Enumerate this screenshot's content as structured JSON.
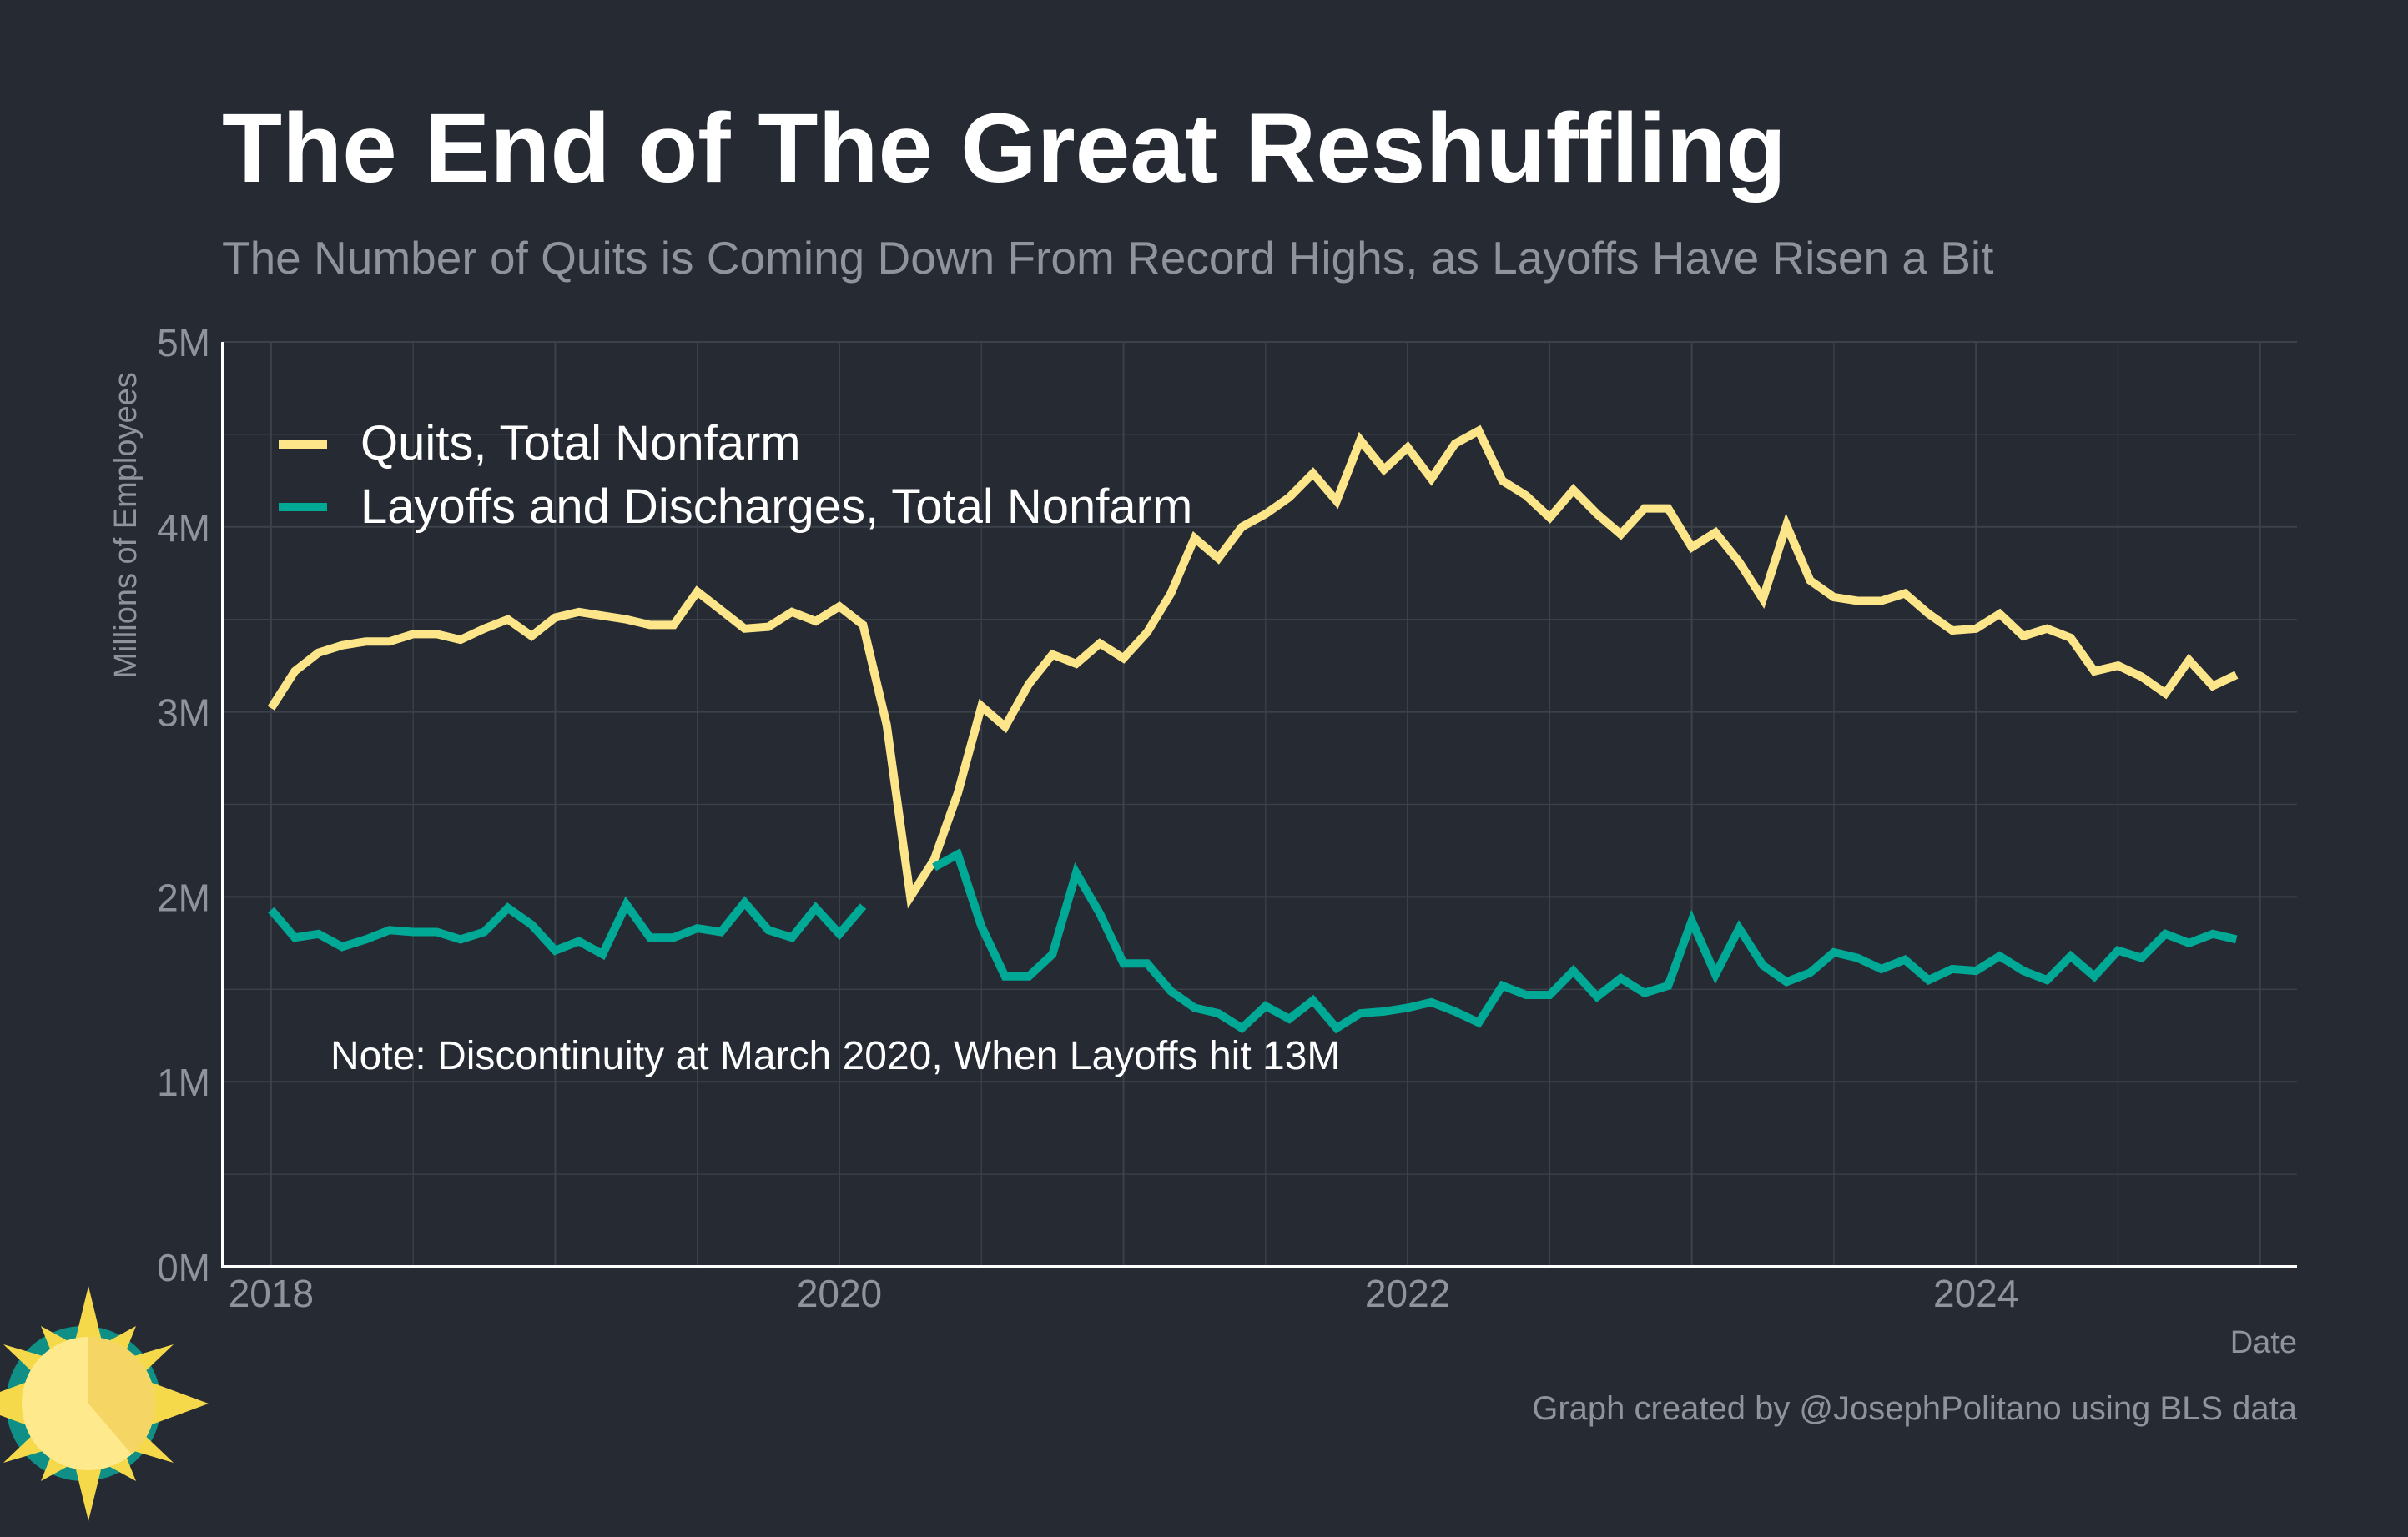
{
  "colors": {
    "background": "#252a33",
    "quits": "#fde68a",
    "layoffs": "#00a896",
    "grid": "#3c414a",
    "axis": "#ffffff",
    "muted": "#8f949c",
    "logo_ring": "#0f8f85",
    "logo_sun": "#ffe98d",
    "logo_sun_dark": "#f5d664",
    "logo_rays": "#f6d94a"
  },
  "logo": {
    "icon": "sun-logo-icon"
  },
  "chart_data": {
    "type": "line",
    "title": "The End of The Great Reshuffling",
    "subtitle": "The Number of Quits is Coming Down From Record Highs, as Layoffs Have Risen a Bit",
    "xlabel": "Date",
    "ylabel": "Millions of Employees",
    "ylim": [
      0,
      5
    ],
    "xlim": [
      2017.83,
      2025.13
    ],
    "yticks": [
      0,
      1,
      2,
      3,
      4,
      5
    ],
    "ytick_labels": [
      "0M",
      "1M",
      "2M",
      "3M",
      "4M",
      "5M"
    ],
    "xticks": [
      2018,
      2020,
      2022,
      2024
    ],
    "xtick_labels": [
      "2018",
      "2020",
      "2022",
      "2024"
    ],
    "grid": true,
    "legend_position": "top-left",
    "x_start": 2018.0,
    "x_step_months": 1,
    "annotation": "Note: Discontinuity at March 2020, When Layoffs hit 13M",
    "caption": "Graph created by @JosephPolitano using BLS data",
    "series": [
      {
        "name": "Quits, Total Nonfarm",
        "color": "#fde68a",
        "values": [
          3.02,
          3.22,
          3.32,
          3.36,
          3.38,
          3.38,
          3.42,
          3.42,
          3.39,
          3.45,
          3.5,
          3.41,
          3.51,
          3.54,
          3.52,
          3.5,
          3.47,
          3.47,
          3.65,
          3.55,
          3.45,
          3.46,
          3.54,
          3.49,
          3.57,
          3.47,
          2.93,
          2.0,
          2.2,
          2.56,
          3.03,
          2.92,
          3.15,
          3.31,
          3.26,
          3.37,
          3.29,
          3.43,
          3.64,
          3.94,
          3.83,
          4.0,
          4.07,
          4.16,
          4.29,
          4.14,
          4.47,
          4.31,
          4.43,
          4.26,
          4.45,
          4.52,
          4.25,
          4.17,
          4.05,
          4.2,
          4.07,
          3.96,
          4.1,
          4.1,
          3.89,
          3.97,
          3.81,
          3.61,
          4.01,
          3.71,
          3.62,
          3.6,
          3.6,
          3.64,
          3.53,
          3.44,
          3.45,
          3.53,
          3.41,
          3.45,
          3.4,
          3.22,
          3.25,
          3.19,
          3.1,
          3.28,
          3.14,
          3.2
        ]
      },
      {
        "name": "Layoffs and Discharges, Total Nonfarm",
        "color": "#00a896",
        "values": [
          1.93,
          1.78,
          1.8,
          1.73,
          1.77,
          1.82,
          1.81,
          1.81,
          1.77,
          1.81,
          1.94,
          1.85,
          1.71,
          1.76,
          1.69,
          1.96,
          1.78,
          1.78,
          1.83,
          1.81,
          1.97,
          1.82,
          1.78,
          1.94,
          1.8,
          1.95,
          null,
          null,
          2.16,
          2.23,
          1.84,
          1.57,
          1.57,
          1.69,
          2.13,
          1.91,
          1.64,
          1.64,
          1.49,
          1.4,
          1.37,
          1.29,
          1.41,
          1.34,
          1.44,
          1.29,
          1.37,
          1.38,
          1.4,
          1.43,
          1.38,
          1.32,
          1.52,
          1.47,
          1.47,
          1.6,
          1.46,
          1.56,
          1.48,
          1.52,
          1.87,
          1.58,
          1.83,
          1.63,
          1.54,
          1.59,
          1.7,
          1.67,
          1.61,
          1.66,
          1.55,
          1.61,
          1.6,
          1.68,
          1.6,
          1.55,
          1.68,
          1.57,
          1.71,
          1.67,
          1.8,
          1.75,
          1.8,
          1.77
        ]
      }
    ]
  }
}
